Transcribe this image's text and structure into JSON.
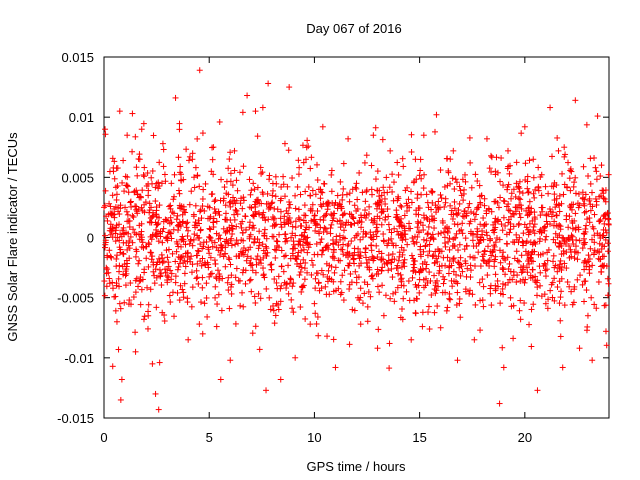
{
  "chart_data": {
    "type": "scatter",
    "title": "Day 067 of 2016",
    "xlabel": "GPS time / hours",
    "ylabel": "GNSS Solar Flare indicator / TECUs",
    "xlim": [
      0,
      24
    ],
    "ylim": [
      -0.015,
      0.015
    ],
    "xticks": [
      "0",
      "5",
      "10",
      "15",
      "20"
    ],
    "yticks": [
      "0.015",
      "0.01",
      "0.005",
      "0",
      "-0.005",
      "-0.01",
      "-0.015"
    ],
    "grid": false,
    "legend": "none",
    "marker": "plus",
    "color": "#ff0000",
    "series": [
      {
        "points": [
          [
            0.05,
            0.009
          ],
          [
            0.15,
            -0.0015
          ],
          [
            0.3,
            0.002
          ],
          [
            0.45,
            0.0055
          ],
          [
            0.6,
            -0.004
          ],
          [
            0.75,
            0.0105
          ],
          [
            0.8,
            -0.0135
          ],
          [
            0.85,
            -0.0118
          ],
          [
            1.0,
            0.0025
          ],
          [
            1.1,
            0.0085
          ],
          [
            1.2,
            -0.0052
          ],
          [
            1.35,
            0.0103
          ],
          [
            1.5,
            -0.0095
          ],
          [
            1.7,
            0.0065
          ],
          [
            1.9,
            -0.0068
          ],
          [
            2.1,
            0.0035
          ],
          [
            2.3,
            -0.0105
          ],
          [
            2.45,
            -0.013
          ],
          [
            2.6,
            -0.0143
          ],
          [
            2.8,
            0.0078
          ],
          [
            3.0,
            -0.0032
          ],
          [
            3.2,
            0.0045
          ],
          [
            3.4,
            0.0116
          ],
          [
            3.6,
            -0.0052
          ],
          [
            3.8,
            0.0022
          ],
          [
            4.0,
            -0.0085
          ],
          [
            4.2,
            0.0065
          ],
          [
            4.4,
            -0.0015
          ],
          [
            4.55,
            0.0139
          ],
          [
            4.7,
            0.0032
          ],
          [
            4.9,
            -0.0066
          ],
          [
            5.1,
            0.0055
          ],
          [
            5.3,
            -0.0022
          ],
          [
            5.5,
            0.0096
          ],
          [
            5.55,
            -0.0118
          ],
          [
            5.75,
            0.0015
          ],
          [
            6.0,
            -0.0102
          ],
          [
            6.2,
            0.0072
          ],
          [
            6.4,
            -0.0036
          ],
          [
            6.6,
            0.0104
          ],
          [
            6.8,
            0.0118
          ],
          [
            7.0,
            -0.0045
          ],
          [
            7.2,
            0.0105
          ],
          [
            7.4,
            -0.0093
          ],
          [
            7.55,
            0.0108
          ],
          [
            7.7,
            -0.0127
          ],
          [
            7.8,
            0.0128
          ],
          [
            8.0,
            0.0035
          ],
          [
            8.2,
            -0.0055
          ],
          [
            8.4,
            -0.0118
          ],
          [
            8.6,
            0.0078
          ],
          [
            8.8,
            0.0125
          ],
          [
            9.0,
            -0.0062
          ],
          [
            9.2,
            0.0042
          ],
          [
            9.4,
            -0.0025
          ],
          [
            9.6,
            0.0065
          ],
          [
            9.8,
            -0.0072
          ],
          [
            10.0,
            0.0018
          ],
          [
            10.2,
            -0.0038
          ],
          [
            10.4,
            0.0092
          ],
          [
            10.6,
            -0.0082
          ],
          [
            10.8,
            0.0052
          ],
          [
            11.0,
            -0.0108
          ],
          [
            11.2,
            0.0028
          ],
          [
            11.4,
            -0.0052
          ],
          [
            11.6,
            0.0082
          ],
          [
            11.8,
            -0.0015
          ],
          [
            12.0,
            0.0045
          ],
          [
            12.2,
            -0.0072
          ],
          [
            12.4,
            0.0062
          ],
          [
            12.6,
            -0.0025
          ],
          [
            12.8,
            0.0085
          ],
          [
            13.0,
            -0.0092
          ],
          [
            13.2,
            0.0035
          ],
          [
            13.4,
            -0.0048
          ],
          [
            13.6,
            0.0072
          ],
          [
            13.8,
            -0.0018
          ],
          [
            14.0,
            0.0052
          ],
          [
            14.2,
            -0.0068
          ],
          [
            14.4,
            0.0022
          ],
          [
            14.6,
            -0.0085
          ],
          [
            14.8,
            0.0065
          ],
          [
            15.0,
            -0.0035
          ],
          [
            15.2,
            0.0085
          ],
          [
            15.4,
            -0.0062
          ],
          [
            15.6,
            0.0015
          ],
          [
            15.8,
            0.0102
          ],
          [
            16.0,
            -0.0075
          ],
          [
            16.2,
            0.0042
          ],
          [
            16.4,
            -0.0025
          ],
          [
            16.6,
            0.0072
          ],
          [
            16.8,
            -0.0102
          ],
          [
            17.0,
            0.0035
          ],
          [
            17.2,
            -0.0045
          ],
          [
            17.4,
            0.0062
          ],
          [
            17.6,
            -0.0085
          ],
          [
            17.8,
            0.0025
          ],
          [
            18.0,
            -0.0052
          ],
          [
            18.2,
            0.0082
          ],
          [
            18.4,
            -0.0015
          ],
          [
            18.6,
            0.0055
          ],
          [
            18.8,
            -0.0138
          ],
          [
            19.0,
            -0.0108
          ],
          [
            19.2,
            0.0072
          ],
          [
            19.4,
            -0.0035
          ],
          [
            19.6,
            0.0045
          ],
          [
            19.8,
            -0.0068
          ],
          [
            20.0,
            0.0092
          ],
          [
            20.2,
            -0.0022
          ],
          [
            20.4,
            0.0065
          ],
          [
            20.6,
            -0.0127
          ],
          [
            20.8,
            0.0035
          ],
          [
            21.0,
            -0.0055
          ],
          [
            21.2,
            0.0108
          ],
          [
            21.4,
            -0.0025
          ],
          [
            21.6,
            0.0072
          ],
          [
            21.8,
            -0.0108
          ],
          [
            22.0,
            0.0042
          ],
          [
            22.2,
            -0.0045
          ],
          [
            22.4,
            0.0114
          ],
          [
            22.6,
            -0.0092
          ],
          [
            22.8,
            0.0028
          ],
          [
            23.0,
            -0.0065
          ],
          [
            23.2,
            -0.0102
          ],
          [
            23.4,
            0.0055
          ],
          [
            23.6,
            -0.0018
          ],
          [
            23.8,
            0.0032
          ],
          [
            23.95,
            -0.0048
          ]
        ],
        "cloud": {
          "count": 2350,
          "std": 0.0032,
          "max_abs": 0.0118,
          "seed": 67
        }
      }
    ]
  }
}
